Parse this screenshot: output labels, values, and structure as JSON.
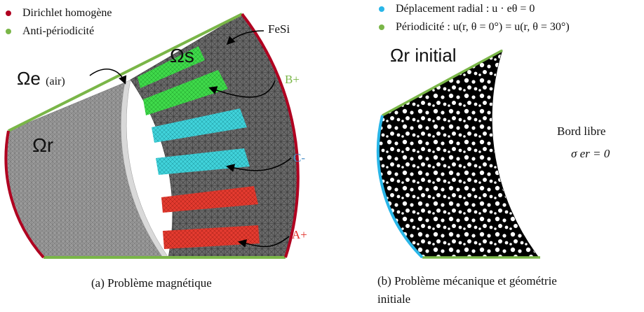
{
  "left_panel": {
    "legend": [
      {
        "label": "Dirichlet homogène",
        "color": "#b00020"
      },
      {
        "label": "Anti-périodicité",
        "color": "#7ab648"
      }
    ],
    "regions": {
      "rotor": "Ωr",
      "stator": "Ωs",
      "air": "Ωe",
      "air_note": "(air)",
      "fesi": "FeSi"
    },
    "phases": [
      {
        "label": "B+",
        "color": "#7ab648"
      },
      {
        "label": "C-",
        "color": "#4a90c8"
      },
      {
        "label": "A+",
        "color": "#e0302a"
      }
    ],
    "caption": "(a) Problème magnétique"
  },
  "right_panel": {
    "legend": [
      {
        "label": "Déplacement radial : u · eθ = 0",
        "color": "#29b6e8"
      },
      {
        "label": "Périodicité : u(r, θ = 0°) = u(r, θ = 30°)",
        "color": "#7ab648"
      }
    ],
    "title": "Ωr initial",
    "free_edge": "Bord libre",
    "free_edge_eq": "σ er = 0",
    "caption_line1": "(b) Problème mécanique et géométrie",
    "caption_line2": "initiale"
  },
  "colors": {
    "mesh_gray": "#8c8c8c",
    "stator_gray": "#5e5e5e",
    "dirichlet": "#b00020",
    "periodic": "#7ab648",
    "radial": "#29b6e8",
    "slot_green": "#3fd94a",
    "slot_cyan": "#3fd0d8",
    "slot_red": "#e0302a"
  }
}
